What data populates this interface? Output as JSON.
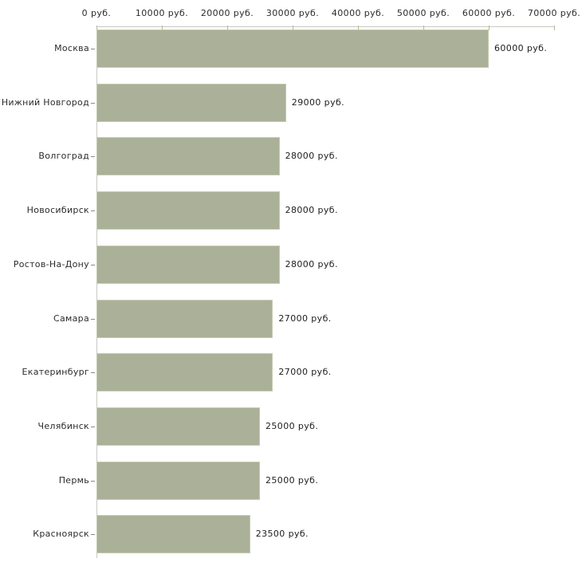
{
  "chart_data": {
    "type": "bar",
    "orientation": "horizontal",
    "title": "",
    "xlabel": "",
    "ylabel": "",
    "currency_suffix": "руб.",
    "categories": [
      "Москва",
      "Нижний Новгород",
      "Волгоград",
      "Новосибирск",
      "Ростов-На-Дону",
      "Самара",
      "Екатеринбург",
      "Челябинск",
      "Пермь",
      "Красноярск"
    ],
    "values": [
      60000,
      29000,
      28000,
      28000,
      28000,
      27000,
      27000,
      25000,
      25000,
      23500
    ],
    "value_labels": [
      "60000 руб.",
      "29000 руб.",
      "28000 руб.",
      "28000 руб.",
      "28000 руб.",
      "27000 руб.",
      "27000 руб.",
      "25000 руб.",
      "25000 руб.",
      "23500 руб."
    ],
    "xlim": [
      0,
      70000
    ],
    "x_tick_values": [
      0,
      10000,
      20000,
      30000,
      40000,
      50000,
      60000,
      70000
    ],
    "x_tick_labels": [
      "0 руб.",
      "10000 руб.",
      "20000 руб.",
      "30000 руб.",
      "40000 руб.",
      "50000 руб.",
      "60000 руб.",
      "70000 руб."
    ],
    "grid": false,
    "legend": "none",
    "axis_position": "top",
    "bar_color": "#aab198",
    "bar_border_color": "#c3c9ae",
    "axis_line_color": "#c9c9c2",
    "tick_color": "#b5ba8c",
    "text_color": "#2b2b2b",
    "background_color": "#ffffff"
  }
}
